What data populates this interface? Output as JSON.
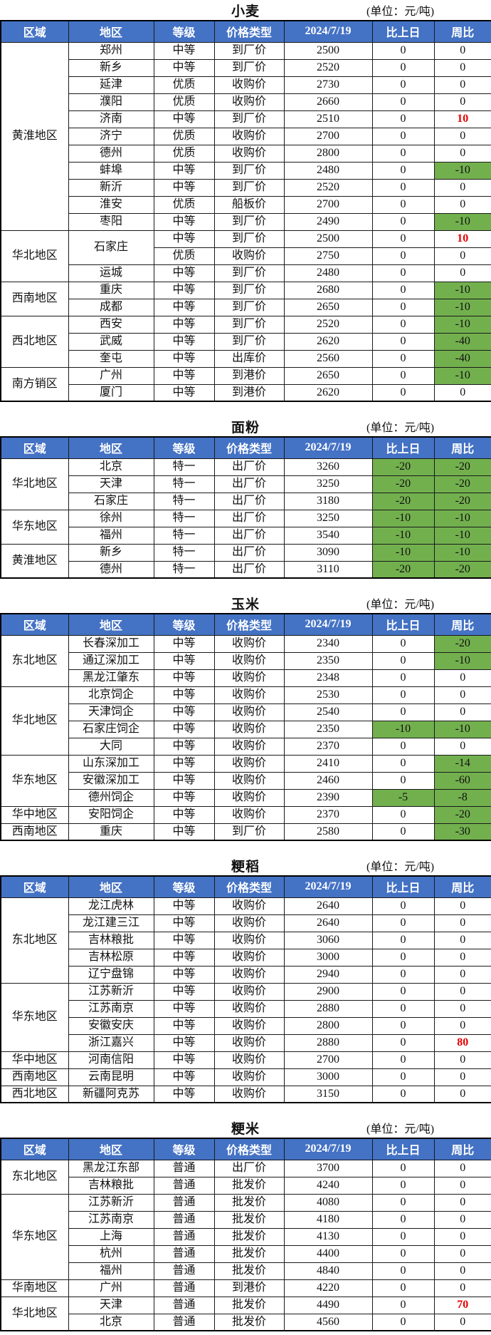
{
  "unit_label": "(单位：元/吨)",
  "columns": [
    "区域",
    "地区",
    "等级",
    "价格类型",
    "2024/7/19",
    "比上日",
    "周比"
  ],
  "colors": {
    "header_bg": "#4472c4",
    "header_text": "#ffffff",
    "negative_change_bg": "#72b04e",
    "positive_change_text": "#e60000"
  },
  "tables": [
    {
      "title": "小麦",
      "groups": [
        {
          "region": "黄淮地区",
          "rows": [
            [
              "郑州",
              "中等",
              "到厂价",
              "2500",
              "0",
              "0"
            ],
            [
              "新乡",
              "中等",
              "到厂价",
              "2520",
              "0",
              "0"
            ],
            [
              "延津",
              "优质",
              "收购价",
              "2730",
              "0",
              "0"
            ],
            [
              "濮阳",
              "优质",
              "收购价",
              "2660",
              "0",
              "0"
            ],
            [
              "济南",
              "中等",
              "到厂价",
              "2510",
              "0",
              "10"
            ],
            [
              "济宁",
              "优质",
              "收购价",
              "2700",
              "0",
              "0"
            ],
            [
              "德州",
              "优质",
              "收购价",
              "2800",
              "0",
              "0"
            ],
            [
              "蚌埠",
              "中等",
              "到厂价",
              "2480",
              "0",
              "-10"
            ],
            [
              "新沂",
              "中等",
              "到厂价",
              "2520",
              "0",
              "0"
            ],
            [
              "淮安",
              "优质",
              "船板价",
              "2700",
              "0",
              "0"
            ],
            [
              "枣阳",
              "中等",
              "到厂价",
              "2490",
              "0",
              "-10"
            ]
          ]
        },
        {
          "region": "华北地区",
          "rows": [
            [
              "石家庄",
              "中等",
              "到厂价",
              "2500",
              "0",
              "10"
            ],
            [
              "石家庄",
              "优质",
              "收购价",
              "2750",
              "0",
              "0"
            ],
            [
              "运城",
              "中等",
              "到厂价",
              "2480",
              "0",
              "0"
            ]
          ]
        },
        {
          "region": "西南地区",
          "rows": [
            [
              "重庆",
              "中等",
              "到厂价",
              "2680",
              "0",
              "-10"
            ],
            [
              "成都",
              "中等",
              "到厂价",
              "2650",
              "0",
              "-10"
            ]
          ]
        },
        {
          "region": "西北地区",
          "rows": [
            [
              "西安",
              "中等",
              "到厂价",
              "2520",
              "0",
              "-10"
            ],
            [
              "武威",
              "中等",
              "到厂价",
              "2620",
              "0",
              "-40"
            ],
            [
              "奎屯",
              "中等",
              "出库价",
              "2560",
              "0",
              "-40"
            ]
          ]
        },
        {
          "region": "南方销区",
          "rows": [
            [
              "广州",
              "中等",
              "到港价",
              "2650",
              "0",
              "-10"
            ],
            [
              "厦门",
              "中等",
              "到港价",
              "2620",
              "0",
              "0"
            ]
          ]
        }
      ]
    },
    {
      "title": "面粉",
      "groups": [
        {
          "region": "华北地区",
          "rows": [
            [
              "北京",
              "特一",
              "出厂价",
              "3260",
              "-20",
              "-20"
            ],
            [
              "天津",
              "特一",
              "出厂价",
              "3250",
              "-20",
              "-20"
            ],
            [
              "石家庄",
              "特一",
              "出厂价",
              "3180",
              "-20",
              "-20"
            ]
          ]
        },
        {
          "region": "华东地区",
          "rows": [
            [
              "徐州",
              "特一",
              "出厂价",
              "3250",
              "-10",
              "-10"
            ],
            [
              "福州",
              "特一",
              "出厂价",
              "3540",
              "-10",
              "-10"
            ]
          ]
        },
        {
          "region": "黄淮地区",
          "rows": [
            [
              "新乡",
              "特一",
              "出厂价",
              "3090",
              "-10",
              "-10"
            ],
            [
              "德州",
              "特一",
              "出厂价",
              "3110",
              "-20",
              "-20"
            ]
          ]
        }
      ]
    },
    {
      "title": "玉米",
      "groups": [
        {
          "region": "东北地区",
          "rows": [
            [
              "长春深加工",
              "中等",
              "收购价",
              "2340",
              "0",
              "-20"
            ],
            [
              "通辽深加工",
              "中等",
              "收购价",
              "2350",
              "0",
              "-10"
            ],
            [
              "黑龙江肇东",
              "中等",
              "收购价",
              "2348",
              "0",
              "0"
            ]
          ]
        },
        {
          "region": "华北地区",
          "rows": [
            [
              "北京饲企",
              "中等",
              "收购价",
              "2530",
              "0",
              "0"
            ],
            [
              "天津饲企",
              "中等",
              "收购价",
              "2540",
              "0",
              "0"
            ],
            [
              "石家庄饲企",
              "中等",
              "收购价",
              "2350",
              "-10",
              "-10"
            ],
            [
              "大同",
              "中等",
              "收购价",
              "2370",
              "0",
              "0"
            ]
          ]
        },
        {
          "region": "华东地区",
          "rows": [
            [
              "山东深加工",
              "中等",
              "收购价",
              "2410",
              "0",
              "-14"
            ],
            [
              "安徽深加工",
              "中等",
              "收购价",
              "2460",
              "0",
              "-60"
            ],
            [
              "德州饲企",
              "中等",
              "收购价",
              "2390",
              "-5",
              "-8"
            ]
          ]
        },
        {
          "region": "华中地区",
          "rows": [
            [
              "安阳饲企",
              "中等",
              "收购价",
              "2370",
              "0",
              "-20"
            ]
          ]
        },
        {
          "region": "西南地区",
          "rows": [
            [
              "重庆",
              "中等",
              "到厂价",
              "2580",
              "0",
              "-30"
            ]
          ]
        }
      ]
    },
    {
      "title": "粳稻",
      "groups": [
        {
          "region": "东北地区",
          "rows": [
            [
              "龙江虎林",
              "中等",
              "收购价",
              "2640",
              "0",
              "0"
            ],
            [
              "龙江建三江",
              "中等",
              "收购价",
              "2640",
              "0",
              "0"
            ],
            [
              "吉林粮批",
              "中等",
              "收购价",
              "3060",
              "0",
              "0"
            ],
            [
              "吉林松原",
              "中等",
              "收购价",
              "3000",
              "0",
              "0"
            ],
            [
              "辽宁盘锦",
              "中等",
              "收购价",
              "2940",
              "0",
              "0"
            ]
          ]
        },
        {
          "region": "华东地区",
          "rows": [
            [
              "江苏新沂",
              "中等",
              "收购价",
              "2900",
              "0",
              "0"
            ],
            [
              "江苏南京",
              "中等",
              "收购价",
              "2880",
              "0",
              "0"
            ],
            [
              "安徽安庆",
              "中等",
              "收购价",
              "2800",
              "0",
              "0"
            ],
            [
              "浙江嘉兴",
              "中等",
              "收购价",
              "2880",
              "0",
              "80"
            ]
          ]
        },
        {
          "region": "华中地区",
          "rows": [
            [
              "河南信阳",
              "中等",
              "收购价",
              "2700",
              "0",
              "0"
            ]
          ]
        },
        {
          "region": "西南地区",
          "rows": [
            [
              "云南昆明",
              "中等",
              "收购价",
              "3000",
              "0",
              "0"
            ]
          ]
        },
        {
          "region": "西北地区",
          "rows": [
            [
              "新疆阿克苏",
              "中等",
              "收购价",
              "3150",
              "0",
              "0"
            ]
          ]
        }
      ]
    },
    {
      "title": "粳米",
      "groups": [
        {
          "region": "东北地区",
          "rows": [
            [
              "黑龙江东部",
              "普通",
              "出厂价",
              "3700",
              "0",
              "0"
            ],
            [
              "吉林粮批",
              "普通",
              "批发价",
              "4240",
              "0",
              "0"
            ]
          ]
        },
        {
          "region": "华东地区",
          "rows": [
            [
              "江苏新沂",
              "普通",
              "批发价",
              "4080",
              "0",
              "0"
            ],
            [
              "江苏南京",
              "普通",
              "批发价",
              "4180",
              "0",
              "0"
            ],
            [
              "上海",
              "普通",
              "批发价",
              "4130",
              "0",
              "0"
            ],
            [
              "杭州",
              "普通",
              "批发价",
              "4400",
              "0",
              "0"
            ],
            [
              "福州",
              "普通",
              "批发价",
              "4840",
              "0",
              "0"
            ]
          ]
        },
        {
          "region": "华南地区",
          "rows": [
            [
              "广州",
              "普通",
              "到港价",
              "4220",
              "0",
              "0"
            ]
          ]
        },
        {
          "region": "华北地区",
          "rows": [
            [
              "天津",
              "普通",
              "批发价",
              "4490",
              "0",
              "70"
            ],
            [
              "北京",
              "普通",
              "批发价",
              "4560",
              "0",
              "0"
            ]
          ]
        }
      ]
    }
  ]
}
